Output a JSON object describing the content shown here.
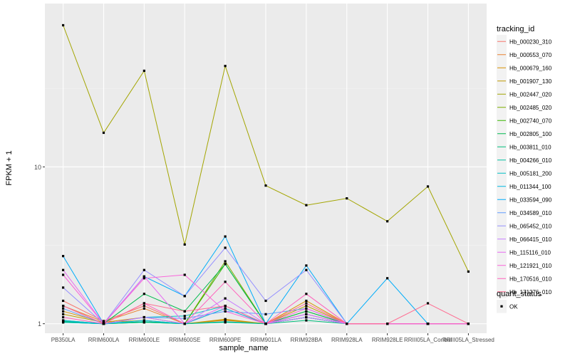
{
  "chart_data": {
    "type": "line",
    "xlabel": "sample_name",
    "ylabel": "FPKM + 1",
    "y_scale": "log10",
    "ylim": [
      0.87,
      110
    ],
    "y_ticks": [
      1,
      10
    ],
    "y_tick_labels": [
      "1",
      "10"
    ],
    "categories": [
      "PB350LA",
      "RRIM600LA",
      "RRIM600LE",
      "RRIM600SE",
      "RRIM600PE",
      "RRIM901LA",
      "RRIM928BA",
      "RRIM928LA",
      "RRIM928LE",
      "RRIII105LA_Control",
      "RRIII105LA_Stressed"
    ],
    "category_labels": [
      "PB350LA",
      "RRIM600LA",
      "RRIM600LE",
      "RRIM600SE",
      "RRIM600PE",
      "RRIM901LA",
      "RRIM928BA",
      "RRIM928LA",
      "RRIM928LE",
      "RRIII05LA_Control",
      "RRIII05LA_Stressed"
    ],
    "legend_title": "tracking_id",
    "legend_position": "right",
    "grid": true,
    "series": [
      {
        "name": "Hb_000230_310",
        "color": "#F8766D",
        "values": [
          1.4,
          1.04,
          1.3,
          1.0,
          1.25,
          1.0,
          1.15,
          1.0,
          1.0,
          1.0,
          1.0
        ]
      },
      {
        "name": "Hb_000553_070",
        "color": "#EA8331",
        "values": [
          1.3,
          1.03,
          1.25,
          1.0,
          1.05,
          1.0,
          1.1,
          1.0,
          1.0,
          1.0,
          1.0
        ]
      },
      {
        "name": "Hb_000679_160",
        "color": "#D89000",
        "values": [
          1.2,
          1.02,
          1.1,
          1.0,
          1.07,
          1.0,
          1.4,
          1.0,
          1.0,
          1.0,
          1.0
        ]
      },
      {
        "name": "Hb_001907_130",
        "color": "#C09B00",
        "values": [
          1.15,
          1.02,
          1.05,
          1.0,
          1.06,
          1.0,
          1.3,
          1.0,
          1.0,
          1.0,
          1.0
        ]
      },
      {
        "name": "Hb_002447_020",
        "color": "#A3A500",
        "values": [
          80,
          16.5,
          41,
          3.2,
          44,
          7.6,
          5.7,
          6.3,
          4.5,
          7.5,
          2.15
        ]
      },
      {
        "name": "Hb_002485_020",
        "color": "#7CAE00",
        "values": [
          1.05,
          1.0,
          1.03,
          1.0,
          2.5,
          1.0,
          1.2,
          1.0,
          1.0,
          1.0,
          1.0
        ]
      },
      {
        "name": "Hb_002740_070",
        "color": "#39B600",
        "values": [
          1.04,
          1.0,
          1.02,
          1.0,
          2.4,
          1.0,
          1.1,
          1.0,
          1.0,
          1.0,
          1.0
        ]
      },
      {
        "name": "Hb_002805_100",
        "color": "#00BB4E",
        "values": [
          1.03,
          1.0,
          1.55,
          1.2,
          2.4,
          1.0,
          1.2,
          1.0,
          1.0,
          1.0,
          1.0
        ]
      },
      {
        "name": "Hb_003811_010",
        "color": "#00BF7D",
        "values": [
          1.02,
          1.0,
          1.02,
          1.0,
          1.02,
          1.0,
          1.05,
          1.0,
          1.0,
          1.0,
          1.0
        ]
      },
      {
        "name": "Hb_004266_010",
        "color": "#00C1A3",
        "values": [
          1.04,
          1.0,
          1.03,
          1.0,
          1.03,
          1.0,
          1.1,
          1.0,
          1.0,
          1.0,
          1.0
        ]
      },
      {
        "name": "Hb_005181_200",
        "color": "#00BFC4",
        "values": [
          1.02,
          1.0,
          1.1,
          1.12,
          1.3,
          1.0,
          1.1,
          1.0,
          1.0,
          1.0,
          1.0
        ]
      },
      {
        "name": "Hb_011344_100",
        "color": "#00B9E3",
        "values": [
          1.05,
          1.0,
          1.05,
          1.0,
          1.25,
          1.0,
          1.15,
          1.0,
          1.0,
          1.0,
          1.0
        ]
      },
      {
        "name": "Hb_033594_090",
        "color": "#00ADFA",
        "values": [
          2.7,
          1.0,
          2.0,
          1.5,
          3.6,
          1.0,
          2.35,
          1.0,
          1.95,
          1.0,
          1.0
        ]
      },
      {
        "name": "Hb_034589_010",
        "color": "#619CFF",
        "values": [
          1.25,
          1.0,
          1.1,
          1.08,
          1.2,
          1.15,
          1.25,
          1.0,
          1.0,
          1.0,
          1.0
        ]
      },
      {
        "name": "Hb_065452_010",
        "color": "#9590FF",
        "values": [
          1.7,
          1.0,
          2.2,
          1.5,
          3.05,
          1.4,
          2.2,
          1.0,
          1.0,
          1.0,
          1.0
        ]
      },
      {
        "name": "Hb_066415_010",
        "color": "#C77CFF",
        "values": [
          1.3,
          1.0,
          1.1,
          1.0,
          1.45,
          1.0,
          1.1,
          1.0,
          1.0,
          1.0,
          1.0
        ]
      },
      {
        "name": "Hb_115116_010",
        "color": "#E76BF3",
        "values": [
          2.2,
          1.0,
          2.0,
          1.0,
          1.3,
          1.0,
          1.15,
          1.0,
          1.0,
          1.0,
          1.0
        ]
      },
      {
        "name": "Hb_121921_010",
        "color": "#FA62DB",
        "values": [
          2.05,
          1.0,
          1.95,
          2.05,
          1.2,
          1.0,
          1.25,
          1.0,
          1.0,
          1.0,
          1.0
        ]
      },
      {
        "name": "Hb_170516_010",
        "color": "#FF62BC",
        "values": [
          1.1,
          1.0,
          1.35,
          1.0,
          1.85,
          1.0,
          1.55,
          1.0,
          1.0,
          1.0,
          1.0
        ]
      },
      {
        "name": "Hb_171276_010",
        "color": "#FF6C91",
        "values": [
          1.3,
          1.0,
          1.35,
          1.2,
          1.3,
          1.0,
          1.35,
          1.0,
          1.0,
          1.35,
          1.0
        ]
      }
    ],
    "shape_legend": {
      "title": "quant_status",
      "entries": [
        "OK"
      ]
    }
  }
}
